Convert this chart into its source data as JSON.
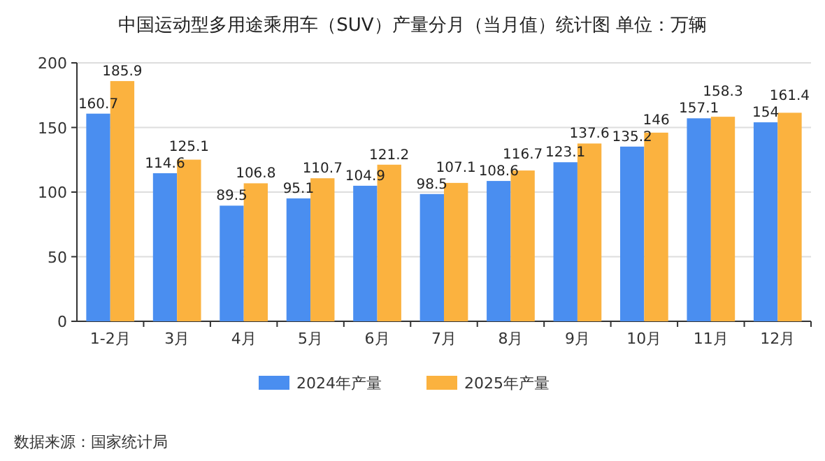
{
  "chart_data": {
    "type": "bar",
    "title": "中国运动型多用途乘用车（SUV）产量分月（当月值）统计图 单位：万辆",
    "categories": [
      "1-2月",
      "3月",
      "4月",
      "5月",
      "6月",
      "7月",
      "8月",
      "9月",
      "10月",
      "11月",
      "12月"
    ],
    "series": [
      {
        "name": "2024年产量",
        "color": "#4a8ef0",
        "values": [
          160.7,
          114.6,
          89.5,
          95.1,
          104.9,
          98.5,
          108.6,
          123.1,
          135.2,
          157.1,
          154
        ]
      },
      {
        "name": "2025年产量",
        "color": "#fbb23f",
        "values": [
          185.9,
          125.1,
          106.8,
          110.7,
          121.2,
          107.1,
          116.7,
          137.6,
          146,
          158.3,
          161.4
        ]
      }
    ],
    "ylim": [
      0,
      200
    ],
    "yticks": [
      0,
      50,
      100,
      150,
      200
    ],
    "grid": "y",
    "legend": "bottom",
    "data_labels": true,
    "annotations": [
      "数据来源：国家统计局"
    ]
  }
}
